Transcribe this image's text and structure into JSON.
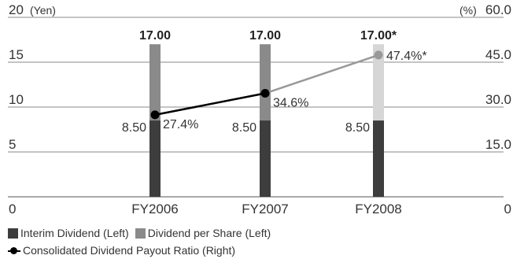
{
  "chart_data": {
    "type": "bar",
    "categories": [
      "FY2006",
      "FY2007",
      "FY2008"
    ],
    "left_axis": {
      "unit_label": "(Yen)",
      "ylim": [
        0,
        20
      ],
      "ticks": [
        0,
        5,
        10,
        15,
        20
      ],
      "tick_labels": [
        "0",
        "5",
        "10",
        "15",
        "20"
      ]
    },
    "right_axis": {
      "unit_label": "(%)",
      "ylim": [
        0,
        60
      ],
      "ticks": [
        0,
        15,
        30,
        45,
        60
      ],
      "tick_labels": [
        "0",
        "15.0",
        "30.0",
        "45.0",
        "60.0"
      ]
    },
    "series": [
      {
        "name": "Interim Dividend (Left)",
        "kind": "bar",
        "values": [
          8.5,
          8.5,
          8.5
        ],
        "labels": [
          "8.50",
          "8.50",
          "8.50"
        ],
        "colors": [
          "#3d3d3d",
          "#3d3d3d",
          "#3d3d3d"
        ]
      },
      {
        "name": "Dividend per Share (Left)",
        "kind": "bar",
        "values": [
          17.0,
          17.0,
          17.0
        ],
        "labels": [
          "17.00",
          "17.00",
          "17.00*"
        ],
        "colors": [
          "#8a8a8a",
          "#8a8a8a",
          "#d6d6d6"
        ]
      },
      {
        "name": "Consolidated Dividend Payout Ratio (Right)",
        "kind": "line",
        "axis": "right",
        "values": [
          27.4,
          34.6,
          47.4
        ],
        "labels": [
          "27.4%",
          "34.6%",
          "47.4%*"
        ],
        "colors": [
          "#000000",
          "#000000",
          "#999999"
        ]
      }
    ],
    "grid": true
  },
  "legend": {
    "interim": "Interim Dividend (Left)",
    "dps": "Dividend per Share (Left)",
    "ratio": "Consolidated Dividend Payout Ratio (Right)"
  }
}
